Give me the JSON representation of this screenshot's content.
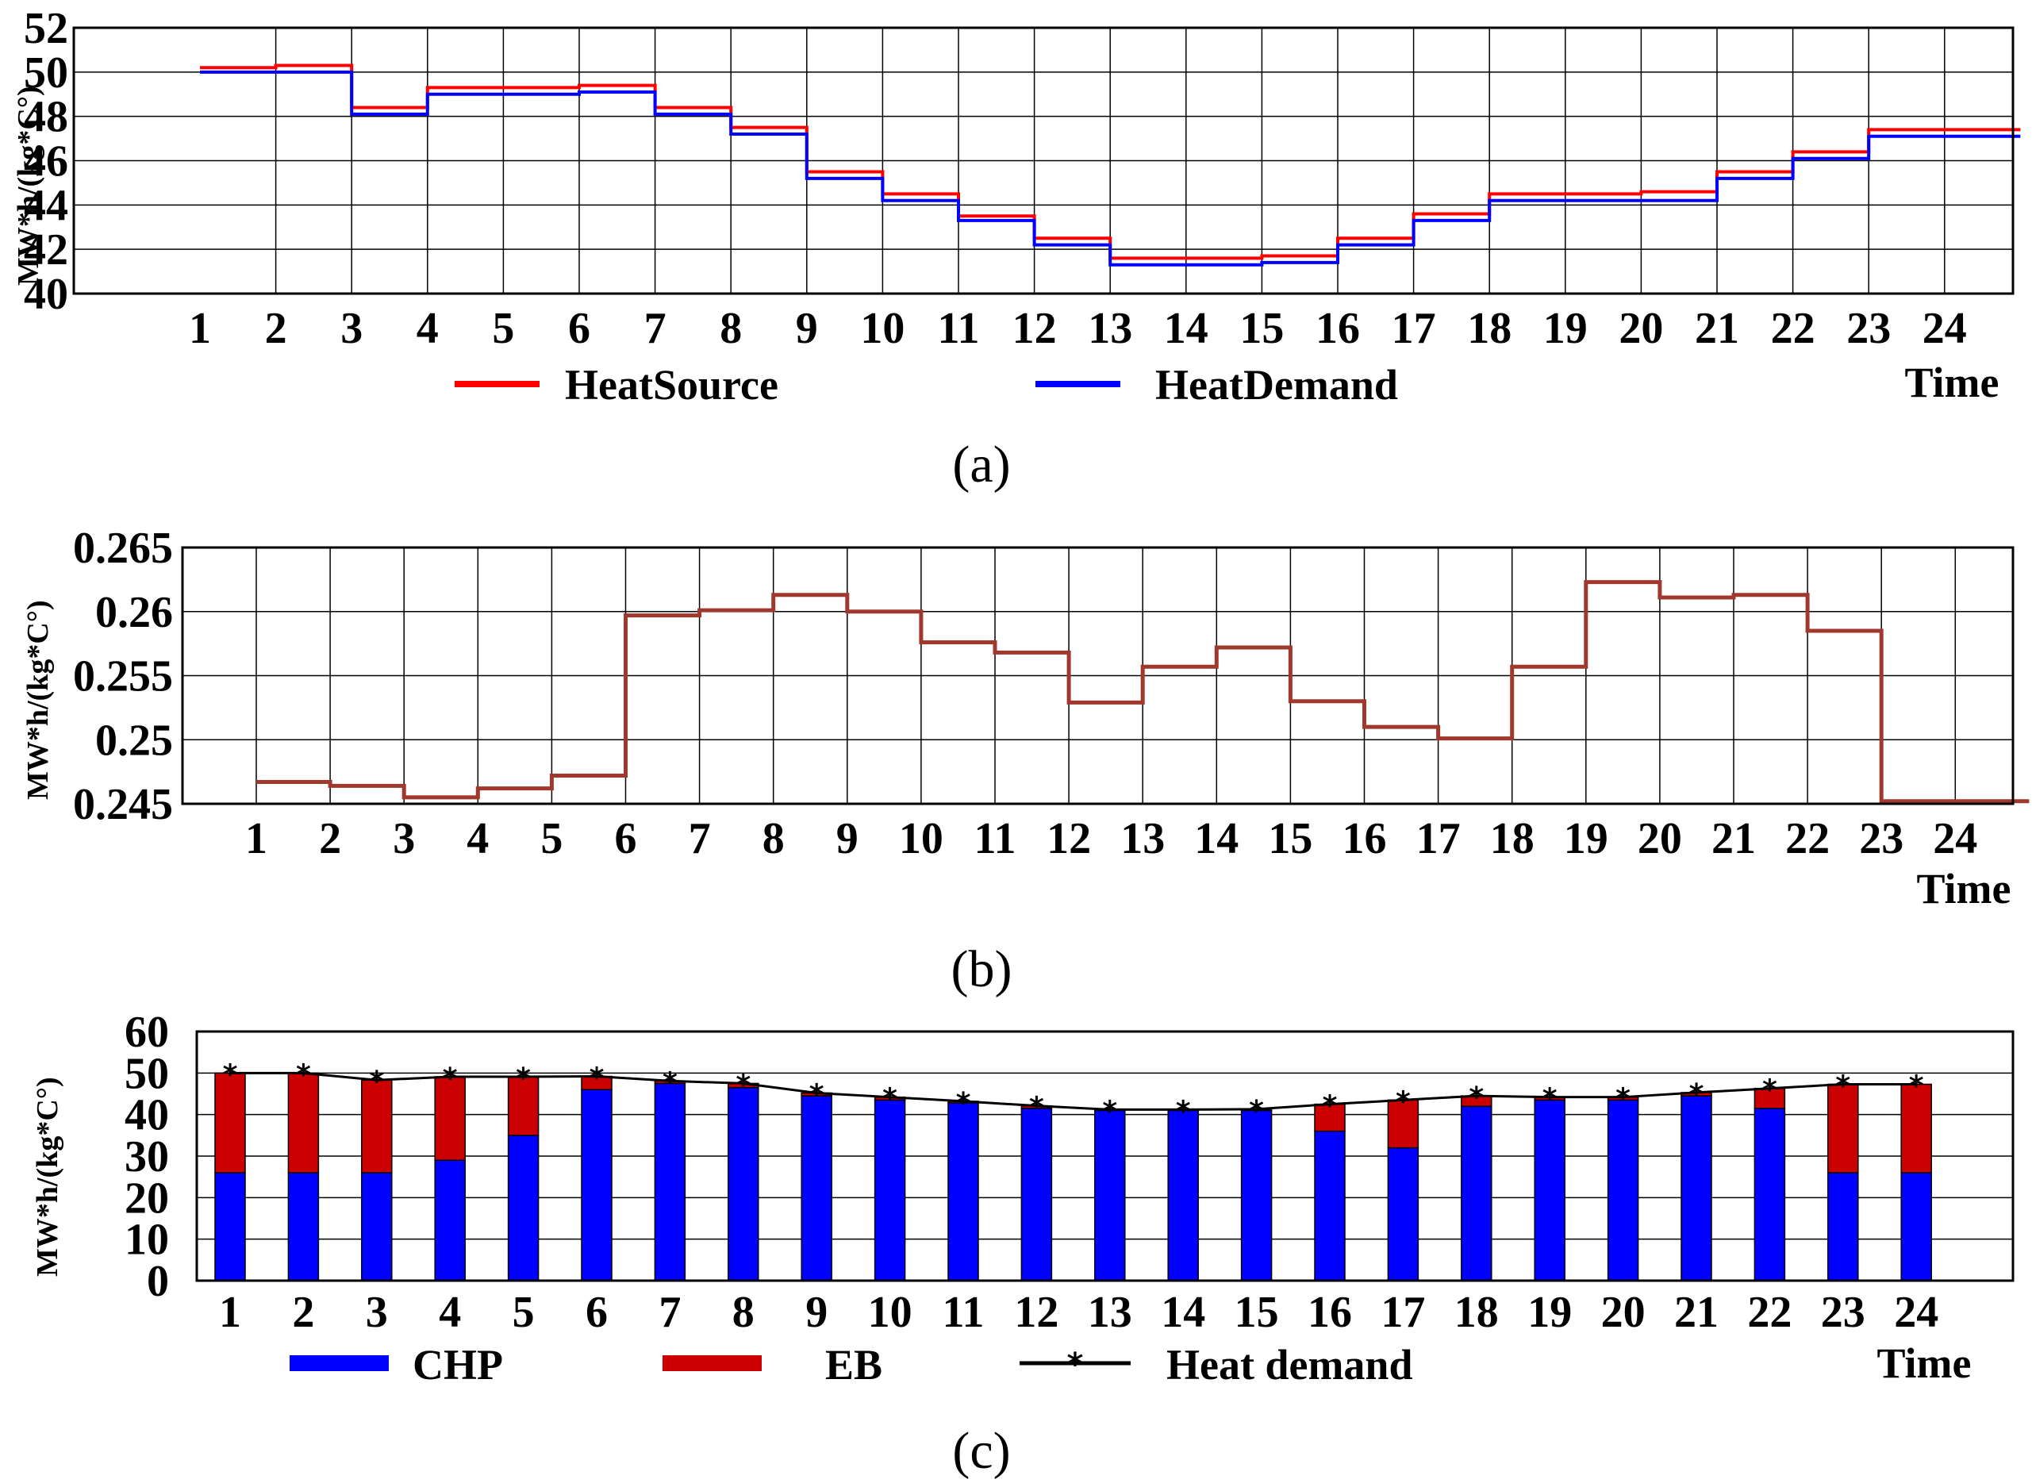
{
  "figure_captions": [
    "(a)",
    "(b)",
    "(c)"
  ],
  "chart_data": [
    {
      "type": "line",
      "step": true,
      "title": "",
      "xlabel": "Time",
      "ylabel": "MW*h/(kg*C°)",
      "ylim": [
        40,
        52
      ],
      "yticks": [
        "40",
        "42",
        "44",
        "46",
        "48",
        "50",
        "52"
      ],
      "x": [
        "1",
        "2",
        "3",
        "4",
        "5",
        "6",
        "7",
        "8",
        "9",
        "10",
        "11",
        "12",
        "13",
        "14",
        "15",
        "16",
        "17",
        "18",
        "19",
        "20",
        "21",
        "22",
        "23",
        "24"
      ],
      "series": [
        {
          "name": "HeatSource",
          "color": "#ff0000",
          "values": [
            50.2,
            50.3,
            48.4,
            49.3,
            49.3,
            49.4,
            48.4,
            47.5,
            45.5,
            44.5,
            43.5,
            42.5,
            41.6,
            41.6,
            41.7,
            42.5,
            43.6,
            44.5,
            44.5,
            44.6,
            45.5,
            46.4,
            47.4,
            47.4
          ]
        },
        {
          "name": "HeatDemand",
          "color": "#0000ff",
          "values": [
            50.0,
            50.0,
            48.1,
            49.0,
            49.0,
            49.1,
            48.1,
            47.2,
            45.2,
            44.2,
            43.3,
            42.2,
            41.3,
            41.3,
            41.4,
            42.2,
            43.3,
            44.2,
            44.2,
            44.2,
            45.2,
            46.1,
            47.1,
            47.1
          ]
        }
      ]
    },
    {
      "type": "line",
      "step": true,
      "title": "",
      "xlabel": "Time",
      "ylabel": "MW*h/(kg*C°)",
      "ylim": [
        0.245,
        0.265
      ],
      "yticks": [
        "0.245",
        "0.25",
        "0.255",
        "0.26",
        "0.265"
      ],
      "x": [
        "1",
        "2",
        "3",
        "4",
        "5",
        "6",
        "7",
        "8",
        "9",
        "10",
        "11",
        "12",
        "13",
        "14",
        "15",
        "16",
        "17",
        "18",
        "19",
        "20",
        "21",
        "22",
        "23",
        "24"
      ],
      "series": [
        {
          "name": "",
          "color": "#a0382e",
          "values": [
            0.2467,
            0.2464,
            0.2455,
            0.2462,
            0.2472,
            0.2597,
            0.2601,
            0.2613,
            0.26,
            0.2576,
            0.2568,
            0.2529,
            0.2557,
            0.2572,
            0.253,
            0.251,
            0.2501,
            0.2557,
            0.2623,
            0.2611,
            0.2613,
            0.2585,
            0.2452,
            0.2452
          ]
        }
      ]
    },
    {
      "type": "bar",
      "stacked": true,
      "title": "",
      "xlabel": "Time",
      "ylabel": "MW*h/(kg*C°)",
      "ylim": [
        0,
        60
      ],
      "yticks": [
        "0",
        "10",
        "20",
        "30",
        "40",
        "50",
        "60"
      ],
      "categories": [
        "1",
        "2",
        "3",
        "4",
        "5",
        "6",
        "7",
        "8",
        "9",
        "10",
        "11",
        "12",
        "13",
        "14",
        "15",
        "16",
        "17",
        "18",
        "19",
        "20",
        "21",
        "22",
        "23",
        "24"
      ],
      "series": [
        {
          "name": "CHP",
          "color": "#0000ff",
          "values": [
            26,
            26,
            26,
            29,
            35,
            46,
            47.5,
            46.5,
            44.5,
            43.5,
            42.8,
            41.5,
            41,
            41,
            41,
            36,
            32,
            42,
            43.5,
            43.5,
            44.5,
            41.5,
            26,
            26
          ]
        },
        {
          "name": "EB",
          "color": "#cc0000",
          "values": [
            24,
            24,
            22.3,
            20.1,
            14.1,
            3.2,
            0.6,
            1,
            0.7,
            0.7,
            0.4,
            0.6,
            0.2,
            0.2,
            0.3,
            6.5,
            11.5,
            2.5,
            0.7,
            0.7,
            0.8,
            4.8,
            21.3,
            21.3
          ]
        },
        {
          "name": "Heat demand",
          "color": "#000000",
          "type": "line",
          "marker": "*",
          "values": [
            50,
            50,
            48.3,
            49.1,
            49.1,
            49.2,
            48.1,
            47.5,
            45.2,
            44.2,
            43.2,
            42.1,
            41.2,
            41.2,
            41.3,
            42.5,
            43.5,
            44.5,
            44.2,
            44.2,
            45.3,
            46.3,
            47.3,
            47.3
          ]
        }
      ]
    }
  ]
}
